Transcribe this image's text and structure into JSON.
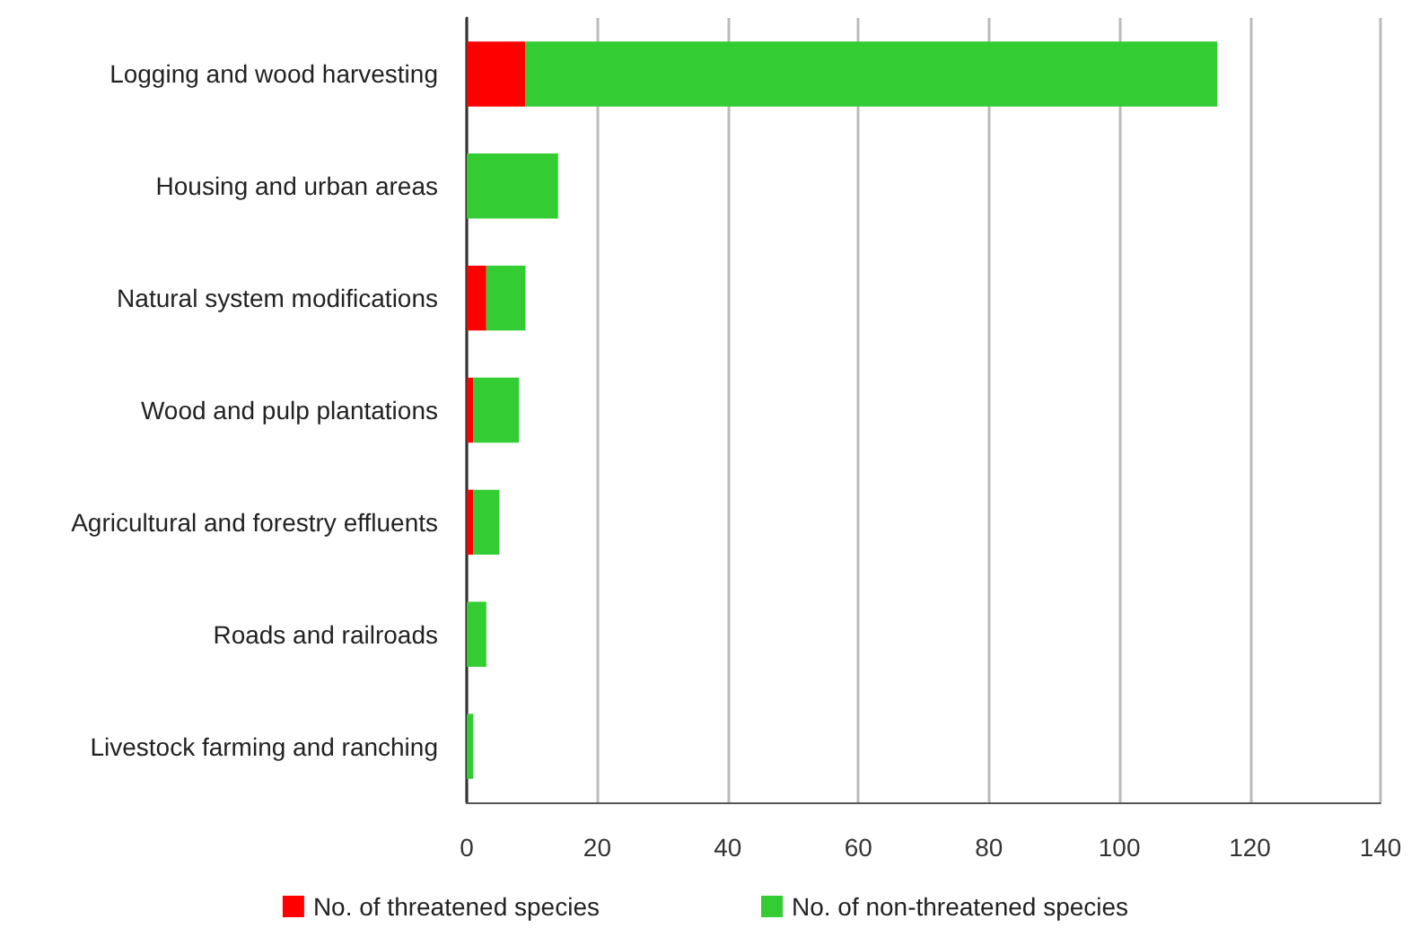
{
  "chart_data": {
    "type": "bar",
    "orientation": "horizontal",
    "stacked": true,
    "categories": [
      "Logging and wood harvesting",
      "Housing and urban areas",
      "Natural system modifications",
      "Wood and pulp plantations",
      "Agricultural and forestry effluents",
      "Roads and railroads",
      "Livestock farming and ranching"
    ],
    "series": [
      {
        "name": "No. of threatened species",
        "color": "#ff0000",
        "values": [
          9,
          0,
          3,
          1,
          1,
          0,
          0
        ]
      },
      {
        "name": "No. of non-threatened species",
        "color": "#33cc33",
        "values": [
          106,
          14,
          6,
          7,
          4,
          3,
          1
        ]
      }
    ],
    "xlim": [
      0,
      140
    ],
    "xticks": [
      0,
      20,
      40,
      60,
      80,
      100,
      120,
      140
    ],
    "grid": "x",
    "legend": "bottom"
  }
}
